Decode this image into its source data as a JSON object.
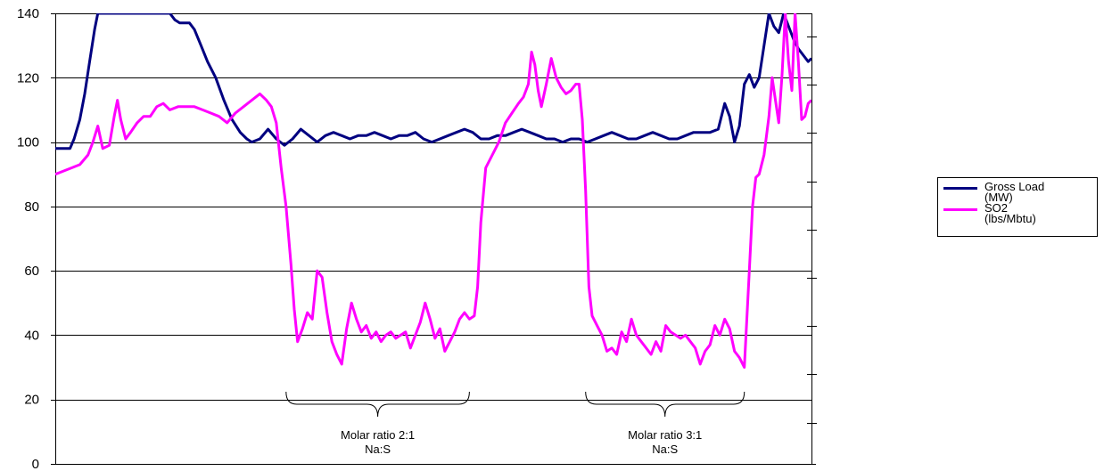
{
  "chart_data": {
    "type": "line",
    "y_axis": {
      "min": 0,
      "max": 140,
      "step": 20,
      "tick_labels": [
        "0",
        "20",
        "40",
        "60",
        "80",
        "100",
        "120",
        "140"
      ]
    },
    "grid": true,
    "legend_position": "right",
    "series": [
      {
        "name": "Gross Load (MW)",
        "color": "#000080",
        "points": [
          [
            0.0,
            98
          ],
          [
            1.0,
            98
          ],
          [
            1.8,
            98
          ],
          [
            2.3,
            101
          ],
          [
            3.0,
            107
          ],
          [
            3.6,
            115
          ],
          [
            4.2,
            125
          ],
          [
            4.8,
            135
          ],
          [
            5.2,
            140
          ],
          [
            14.0,
            140
          ],
          [
            14.6,
            138
          ],
          [
            15.2,
            137
          ],
          [
            16.4,
            137
          ],
          [
            17.0,
            135
          ],
          [
            17.8,
            130
          ],
          [
            18.6,
            125
          ],
          [
            19.6,
            120
          ],
          [
            20.6,
            113
          ],
          [
            21.6,
            107
          ],
          [
            22.6,
            103
          ],
          [
            23.4,
            101
          ],
          [
            24.0,
            100
          ],
          [
            25.0,
            101
          ],
          [
            26.0,
            104
          ],
          [
            27.0,
            101
          ],
          [
            28.0,
            99
          ],
          [
            29.0,
            101
          ],
          [
            30.0,
            104
          ],
          [
            31.0,
            102
          ],
          [
            32.0,
            100
          ],
          [
            33.0,
            102
          ],
          [
            34.0,
            103
          ],
          [
            35.0,
            102
          ],
          [
            36.0,
            101
          ],
          [
            37.0,
            102
          ],
          [
            38.0,
            102
          ],
          [
            39.0,
            103
          ],
          [
            40.0,
            102
          ],
          [
            41.0,
            101
          ],
          [
            42.0,
            102
          ],
          [
            43.0,
            102
          ],
          [
            44.0,
            103
          ],
          [
            45.0,
            101
          ],
          [
            46.0,
            100
          ],
          [
            47.0,
            101
          ],
          [
            48.0,
            102
          ],
          [
            49.0,
            103
          ],
          [
            50.0,
            104
          ],
          [
            51.0,
            103
          ],
          [
            52.0,
            101
          ],
          [
            53.0,
            101
          ],
          [
            54.0,
            102
          ],
          [
            55.0,
            102
          ],
          [
            56.0,
            103
          ],
          [
            57.0,
            104
          ],
          [
            58.0,
            103
          ],
          [
            59.0,
            102
          ],
          [
            60.0,
            101
          ],
          [
            61.0,
            101
          ],
          [
            62.0,
            100
          ],
          [
            63.0,
            101
          ],
          [
            64.0,
            101
          ],
          [
            65.0,
            100
          ],
          [
            66.0,
            101
          ],
          [
            67.0,
            102
          ],
          [
            68.0,
            103
          ],
          [
            69.0,
            102
          ],
          [
            70.0,
            101
          ],
          [
            71.0,
            101
          ],
          [
            72.0,
            102
          ],
          [
            73.0,
            103
          ],
          [
            74.0,
            102
          ],
          [
            75.0,
            101
          ],
          [
            76.0,
            101
          ],
          [
            77.0,
            102
          ],
          [
            78.0,
            103
          ],
          [
            79.0,
            103
          ],
          [
            80.0,
            103
          ],
          [
            81.0,
            104
          ],
          [
            81.8,
            112
          ],
          [
            82.4,
            108
          ],
          [
            83.0,
            100
          ],
          [
            83.6,
            105
          ],
          [
            84.2,
            118
          ],
          [
            84.8,
            121
          ],
          [
            85.4,
            117
          ],
          [
            86.0,
            120
          ],
          [
            86.6,
            130
          ],
          [
            87.2,
            140
          ],
          [
            87.8,
            136
          ],
          [
            88.4,
            134
          ],
          [
            89.0,
            140
          ],
          [
            89.6,
            136
          ],
          [
            90.2,
            132
          ],
          [
            90.8,
            129
          ],
          [
            91.4,
            127
          ],
          [
            92.0,
            125
          ],
          [
            92.4,
            126
          ]
        ]
      },
      {
        "name": "SO2 (lbs/Mbtu)",
        "color": "#ff00ff",
        "points": [
          [
            0.0,
            90
          ],
          [
            1.0,
            91
          ],
          [
            2.0,
            92
          ],
          [
            3.0,
            93
          ],
          [
            4.0,
            96
          ],
          [
            4.6,
            100
          ],
          [
            5.2,
            105
          ],
          [
            5.8,
            98
          ],
          [
            6.6,
            99
          ],
          [
            7.2,
            108
          ],
          [
            7.6,
            113
          ],
          [
            8.0,
            107
          ],
          [
            8.6,
            101
          ],
          [
            9.2,
            103
          ],
          [
            10.0,
            106
          ],
          [
            10.8,
            108
          ],
          [
            11.6,
            108
          ],
          [
            12.4,
            111
          ],
          [
            13.2,
            112
          ],
          [
            14.0,
            110
          ],
          [
            15.0,
            111
          ],
          [
            16.0,
            111
          ],
          [
            17.0,
            111
          ],
          [
            18.0,
            110
          ],
          [
            19.0,
            109
          ],
          [
            20.0,
            108
          ],
          [
            21.0,
            106
          ],
          [
            22.0,
            109
          ],
          [
            23.0,
            111
          ],
          [
            24.0,
            113
          ],
          [
            25.0,
            115
          ],
          [
            25.8,
            113
          ],
          [
            26.4,
            111
          ],
          [
            27.0,
            106
          ],
          [
            27.6,
            92
          ],
          [
            28.2,
            80
          ],
          [
            28.8,
            62
          ],
          [
            29.2,
            48
          ],
          [
            29.6,
            38
          ],
          [
            30.2,
            42
          ],
          [
            30.8,
            47
          ],
          [
            31.4,
            45
          ],
          [
            32.0,
            60
          ],
          [
            32.6,
            58
          ],
          [
            33.2,
            47
          ],
          [
            33.8,
            38
          ],
          [
            34.4,
            34
          ],
          [
            35.0,
            31
          ],
          [
            35.6,
            42
          ],
          [
            36.2,
            50
          ],
          [
            36.8,
            45
          ],
          [
            37.4,
            41
          ],
          [
            38.0,
            43
          ],
          [
            38.6,
            39
          ],
          [
            39.2,
            41
          ],
          [
            39.8,
            38
          ],
          [
            40.4,
            40
          ],
          [
            41.0,
            41
          ],
          [
            41.6,
            39
          ],
          [
            42.2,
            40
          ],
          [
            42.8,
            41
          ],
          [
            43.4,
            36
          ],
          [
            44.0,
            40
          ],
          [
            44.6,
            44
          ],
          [
            45.2,
            50
          ],
          [
            45.8,
            45
          ],
          [
            46.4,
            39
          ],
          [
            47.0,
            42
          ],
          [
            47.6,
            35
          ],
          [
            48.2,
            38
          ],
          [
            48.8,
            41
          ],
          [
            49.4,
            45
          ],
          [
            50.0,
            47
          ],
          [
            50.6,
            45
          ],
          [
            51.2,
            46
          ],
          [
            51.6,
            55
          ],
          [
            52.0,
            75
          ],
          [
            52.6,
            92
          ],
          [
            53.4,
            96
          ],
          [
            54.2,
            100
          ],
          [
            55.0,
            106
          ],
          [
            55.8,
            109
          ],
          [
            56.6,
            112
          ],
          [
            57.2,
            114
          ],
          [
            57.8,
            118
          ],
          [
            58.2,
            128
          ],
          [
            58.6,
            124
          ],
          [
            59.0,
            116
          ],
          [
            59.4,
            111
          ],
          [
            60.0,
            118
          ],
          [
            60.6,
            126
          ],
          [
            61.2,
            120
          ],
          [
            61.8,
            117
          ],
          [
            62.4,
            115
          ],
          [
            63.0,
            116
          ],
          [
            63.6,
            118
          ],
          [
            64.0,
            118
          ],
          [
            64.4,
            107
          ],
          [
            64.8,
            85
          ],
          [
            65.2,
            55
          ],
          [
            65.6,
            46
          ],
          [
            66.2,
            43
          ],
          [
            66.8,
            40
          ],
          [
            67.4,
            35
          ],
          [
            68.0,
            36
          ],
          [
            68.6,
            34
          ],
          [
            69.2,
            41
          ],
          [
            69.8,
            38
          ],
          [
            70.4,
            45
          ],
          [
            71.0,
            40
          ],
          [
            71.6,
            38
          ],
          [
            72.2,
            36
          ],
          [
            72.8,
            34
          ],
          [
            73.4,
            38
          ],
          [
            74.0,
            35
          ],
          [
            74.6,
            43
          ],
          [
            75.2,
            41
          ],
          [
            75.8,
            40
          ],
          [
            76.4,
            39
          ],
          [
            77.0,
            40
          ],
          [
            77.6,
            38
          ],
          [
            78.2,
            36
          ],
          [
            78.8,
            31
          ],
          [
            79.4,
            35
          ],
          [
            80.0,
            37
          ],
          [
            80.6,
            43
          ],
          [
            81.2,
            40
          ],
          [
            81.8,
            45
          ],
          [
            82.4,
            42
          ],
          [
            83.0,
            35
          ],
          [
            83.6,
            33
          ],
          [
            84.2,
            30
          ],
          [
            84.8,
            60
          ],
          [
            85.2,
            80
          ],
          [
            85.6,
            89
          ],
          [
            86.0,
            90
          ],
          [
            86.6,
            96
          ],
          [
            87.2,
            108
          ],
          [
            87.6,
            120
          ],
          [
            88.0,
            113
          ],
          [
            88.4,
            106
          ],
          [
            88.8,
            121
          ],
          [
            89.2,
            140
          ],
          [
            89.6,
            125
          ],
          [
            90.0,
            116
          ],
          [
            90.4,
            140
          ],
          [
            90.8,
            125
          ],
          [
            91.2,
            107
          ],
          [
            91.6,
            108
          ],
          [
            92.0,
            112
          ],
          [
            92.4,
            113
          ]
        ]
      }
    ],
    "annotations": [
      {
        "text_line1": "Molar ratio 2:1",
        "text_line2": "Na:S",
        "x_start": 28.2,
        "x_end": 50.6
      },
      {
        "text_line1": "Molar ratio 3:1",
        "text_line2": "Na:S",
        "x_start": 64.8,
        "x_end": 84.2
      }
    ]
  },
  "legend": {
    "items": [
      {
        "line1": "Gross Load",
        "line2": "(MW)",
        "color": "#000080"
      },
      {
        "line1": "SO2",
        "line2": "(lbs/Mbtu)",
        "color": "#ff00ff"
      }
    ]
  }
}
